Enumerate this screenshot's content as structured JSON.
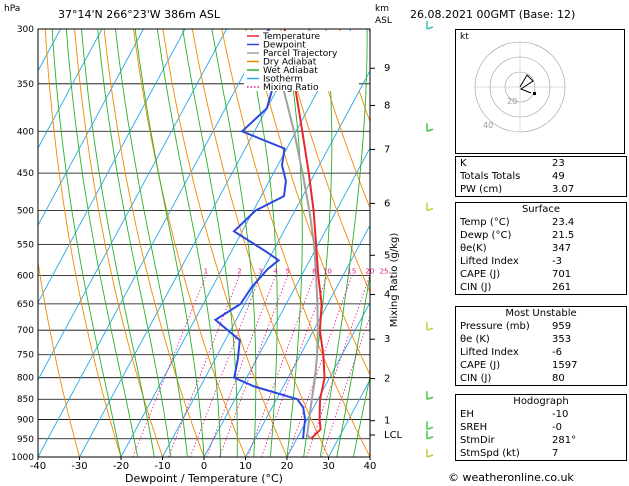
{
  "header": {
    "location": "37°14'N 266°23'W 386m ASL",
    "datetime": "26.08.2021 00GMT (Base: 12)",
    "hpa_label": "hPa",
    "km_label": "km",
    "asl_label": "ASL",
    "copyright": "© weatheronline.co.uk"
  },
  "chart_data": {
    "type": "line",
    "xlabel": "Dewpoint / Temperature (°C)",
    "ylabel_right": "Mixing Ratio (g/kg)",
    "x_ticks": [
      -40,
      -30,
      -20,
      -10,
      0,
      10,
      20,
      30,
      40
    ],
    "pressure_ticks": [
      300,
      350,
      400,
      450,
      500,
      550,
      600,
      650,
      700,
      750,
      800,
      850,
      900,
      950,
      1000
    ],
    "xlim": [
      -40,
      40
    ],
    "ylim_hpa": [
      1000,
      300
    ],
    "height_ticks": [
      {
        "label": "9",
        "p": 335
      },
      {
        "label": "8",
        "p": 372
      },
      {
        "label": "7",
        "p": 421
      },
      {
        "label": "6",
        "p": 490
      },
      {
        "label": "5",
        "p": 567
      },
      {
        "label": "4",
        "p": 633
      },
      {
        "label": "3",
        "p": 718
      },
      {
        "label": "2",
        "p": 802
      },
      {
        "label": "1",
        "p": 903
      },
      {
        "label": "LCL",
        "p": 940
      }
    ],
    "mixing_ratio_labels": [
      "1",
      "2",
      "3",
      "4",
      "5",
      "8",
      "10",
      "15",
      "20",
      "25"
    ],
    "mixing_ratio_values": [
      1,
      2,
      3,
      4,
      5,
      8,
      10,
      15,
      20,
      25
    ],
    "legend": [
      "Temperature",
      "Dewpoint",
      "Parcel Trajectory",
      "Dry Adiabat",
      "Wet Adiabat",
      "Isotherm",
      "Mixing Ratio"
    ],
    "colors": {
      "temperature": "#e8262c",
      "dewpoint": "#2b47e0",
      "parcel": "#a0a0a0",
      "dry_adiabat": "#f08a00",
      "wet_adiabat": "#28b028",
      "isotherm": "#28a8e8",
      "mixing_ratio": "#e0148c"
    },
    "temperature": [
      {
        "p": 950,
        "t": 23.4
      },
      {
        "p": 925,
        "t": 24.5
      },
      {
        "p": 900,
        "t": 23.0
      },
      {
        "p": 870,
        "t": 21.5
      },
      {
        "p": 850,
        "t": 20.5
      },
      {
        "p": 800,
        "t": 18.8
      },
      {
        "p": 750,
        "t": 15.5
      },
      {
        "p": 700,
        "t": 11.5
      },
      {
        "p": 650,
        "t": 8.5
      },
      {
        "p": 600,
        "t": 4.0
      },
      {
        "p": 550,
        "t": -0.5
      },
      {
        "p": 500,
        "t": -5.5
      },
      {
        "p": 450,
        "t": -11.5
      },
      {
        "p": 400,
        "t": -18.5
      },
      {
        "p": 350,
        "t": -26.5
      },
      {
        "p": 300,
        "t": -36.0
      }
    ],
    "dewpoint": [
      {
        "p": 950,
        "t": 21.5
      },
      {
        "p": 925,
        "t": 20.5
      },
      {
        "p": 900,
        "t": 19.5
      },
      {
        "p": 870,
        "t": 17.5
      },
      {
        "p": 850,
        "t": 15.0
      },
      {
        "p": 820,
        "t": 3.0
      },
      {
        "p": 800,
        "t": -3.0
      },
      {
        "p": 760,
        "t": -4.5
      },
      {
        "p": 720,
        "t": -6.5
      },
      {
        "p": 680,
        "t": -15.0
      },
      {
        "p": 650,
        "t": -11.0
      },
      {
        "p": 620,
        "t": -10.5
      },
      {
        "p": 590,
        "t": -9.0
      },
      {
        "p": 575,
        "t": -7.5
      },
      {
        "p": 560,
        "t": -12.0
      },
      {
        "p": 530,
        "t": -22.0
      },
      {
        "p": 500,
        "t": -19.5
      },
      {
        "p": 480,
        "t": -14.5
      },
      {
        "p": 460,
        "t": -16.0
      },
      {
        "p": 440,
        "t": -19.0
      },
      {
        "p": 420,
        "t": -20.5
      },
      {
        "p": 400,
        "t": -33.0
      },
      {
        "p": 375,
        "t": -30.0
      },
      {
        "p": 350,
        "t": -31.5
      },
      {
        "p": 330,
        "t": -32.0
      },
      {
        "p": 300,
        "t": -40.0
      }
    ],
    "parcel": [
      {
        "p": 950,
        "t": 23.4
      },
      {
        "p": 940,
        "t": 22.0
      },
      {
        "p": 900,
        "t": 20.5
      },
      {
        "p": 850,
        "t": 18.5
      },
      {
        "p": 800,
        "t": 16.5
      },
      {
        "p": 750,
        "t": 14.0
      },
      {
        "p": 700,
        "t": 11.0
      },
      {
        "p": 650,
        "t": 7.5
      },
      {
        "p": 600,
        "t": 3.5
      },
      {
        "p": 550,
        "t": -1.0
      },
      {
        "p": 500,
        "t": -6.5
      },
      {
        "p": 450,
        "t": -13.0
      },
      {
        "p": 400,
        "t": -20.5
      },
      {
        "p": 350,
        "t": -29.5
      },
      {
        "p": 300,
        "t": -40.0
      }
    ]
  },
  "hodograph": {
    "label": "kt",
    "ring_labels": [
      "20",
      "40"
    ]
  },
  "indices": {
    "top": [
      {
        "label": "K",
        "value": "23"
      },
      {
        "label": "Totals Totals",
        "value": "49"
      },
      {
        "label": "PW (cm)",
        "value": "3.07"
      }
    ],
    "surface_title": "Surface",
    "surface": [
      {
        "label": "Temp (°C)",
        "value": "23.4"
      },
      {
        "label": "Dewp (°C)",
        "value": "21.5"
      },
      {
        "label": "θe(K)",
        "value": "347"
      },
      {
        "label": "Lifted Index",
        "value": "-3"
      },
      {
        "label": "CAPE (J)",
        "value": "701"
      },
      {
        "label": "CIN (J)",
        "value": "261"
      }
    ],
    "mu_title": "Most Unstable",
    "most_unstable": [
      {
        "label": "Pressure (mb)",
        "value": "959"
      },
      {
        "label": "θe (K)",
        "value": "353"
      },
      {
        "label": "Lifted Index",
        "value": "-6"
      },
      {
        "label": "CAPE (J)",
        "value": "1597"
      },
      {
        "label": "CIN (J)",
        "value": "80"
      }
    ],
    "hodo_title": "Hodograph",
    "hodograph": [
      {
        "label": "EH",
        "value": "-10"
      },
      {
        "label": "SREH",
        "value": "-0"
      },
      {
        "label": "StmDir",
        "value": "281°"
      },
      {
        "label": "StmSpd (kt)",
        "value": "7"
      }
    ]
  }
}
